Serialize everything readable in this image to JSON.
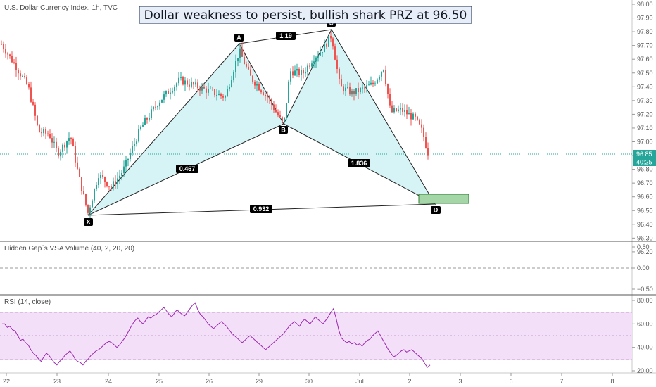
{
  "panel_titles": {
    "price": "U.S. Dollar Currency Index, 1h, TVC",
    "volume": "Hidden Gap´s VSA Volume (40, 2, 20, 20)",
    "rsi": "RSI (14, close)"
  },
  "headline": "Dollar weakness to persist, bullish shark PRZ at 96.50",
  "price_axis": {
    "ticks": [
      "98.00",
      "97.90",
      "97.80",
      "97.70",
      "97.60",
      "97.50",
      "97.40",
      "97.30",
      "97.20",
      "97.10",
      "97.00",
      "96.90",
      "96.80",
      "96.70",
      "96.60",
      "96.50",
      "96.40",
      "96.30",
      "96.20"
    ],
    "last_price": "96.85",
    "countdown": "40:25"
  },
  "volume_axis": {
    "ticks": [
      "0.50",
      "0.00",
      "−0.50"
    ]
  },
  "rsi_axis": {
    "ticks": [
      "80.00",
      "60.00",
      "40.00",
      "20.00"
    ]
  },
  "x_axis": {
    "ticks": [
      "22",
      "23",
      "24",
      "25",
      "26",
      "29",
      "30",
      "Jul",
      "2",
      "3",
      "6",
      "7",
      "8"
    ]
  },
  "colors": {
    "up": "#26a69a",
    "down": "#ef5350",
    "harmonic_fill": "#d6f3f5",
    "prz_fill": "#a5d6a7",
    "rsi_line": "#9c27b0",
    "rsi_band": "#f3e0f8",
    "last_price": "#26a69a"
  },
  "chart_data": [
    {
      "type": "candlestick",
      "title": "U.S. Dollar Currency Index, 1h, TVC",
      "ylim": [
        96.2,
        98.05
      ],
      "x_ticks": [
        "22",
        "23",
        "24",
        "25",
        "26",
        "29",
        "30",
        "Jul",
        "2",
        "3",
        "6",
        "7",
        "8"
      ],
      "pattern_points": [
        {
          "label": "X",
          "price": 96.4
        },
        {
          "label": "A",
          "price": 97.7
        },
        {
          "label": "B",
          "price": 97.1
        },
        {
          "label": "C",
          "price": 97.8
        },
        {
          "label": "D",
          "price": 96.5
        }
      ],
      "ratios": [
        {
          "label": "1.19",
          "between": "A-C"
        },
        {
          "label": "0.467",
          "between": "X-B"
        },
        {
          "label": "1.836",
          "between": "B-D"
        },
        {
          "label": "0.932",
          "between": "X-D"
        }
      ],
      "prz": {
        "low": 96.5,
        "high": 96.56
      },
      "last_price": 96.85
    },
    {
      "type": "line",
      "title": "RSI (14, close)",
      "ylim": [
        17,
        84
      ],
      "bands": [
        30,
        70
      ],
      "midline": 50,
      "values": [
        60,
        60,
        57,
        58,
        55,
        54,
        50,
        46,
        47,
        44,
        42,
        38,
        35,
        33,
        30,
        28,
        32,
        35,
        33,
        30,
        27,
        25,
        28,
        30,
        33,
        35,
        37,
        34,
        30,
        28,
        27,
        25,
        28,
        30,
        33,
        35,
        37,
        38,
        40,
        42,
        44,
        45,
        44,
        42,
        40,
        42,
        45,
        48,
        52,
        56,
        60,
        63,
        65,
        62,
        60,
        63,
        66,
        65,
        67,
        68,
        70,
        72,
        74,
        71,
        68,
        66,
        69,
        72,
        70,
        68,
        67,
        70,
        73,
        76,
        78,
        72,
        68,
        66,
        63,
        60,
        58,
        56,
        58,
        60,
        62,
        60,
        58,
        55,
        52,
        50,
        48,
        46,
        44,
        46,
        48,
        50,
        48,
        46,
        44,
        42,
        40,
        38,
        40,
        42,
        44,
        46,
        48,
        50,
        52,
        55,
        58,
        60,
        62,
        60,
        58,
        62,
        64,
        62,
        60,
        63,
        66,
        64,
        62,
        60,
        63,
        66,
        70,
        73,
        65,
        55,
        48,
        46,
        44,
        45,
        43,
        44,
        42,
        43,
        41,
        44,
        46,
        47,
        50,
        52,
        54,
        50,
        46,
        42,
        38,
        35,
        32,
        33,
        35,
        37,
        38,
        36,
        37,
        38,
        36,
        34,
        32,
        30,
        26,
        23,
        25
      ]
    }
  ]
}
